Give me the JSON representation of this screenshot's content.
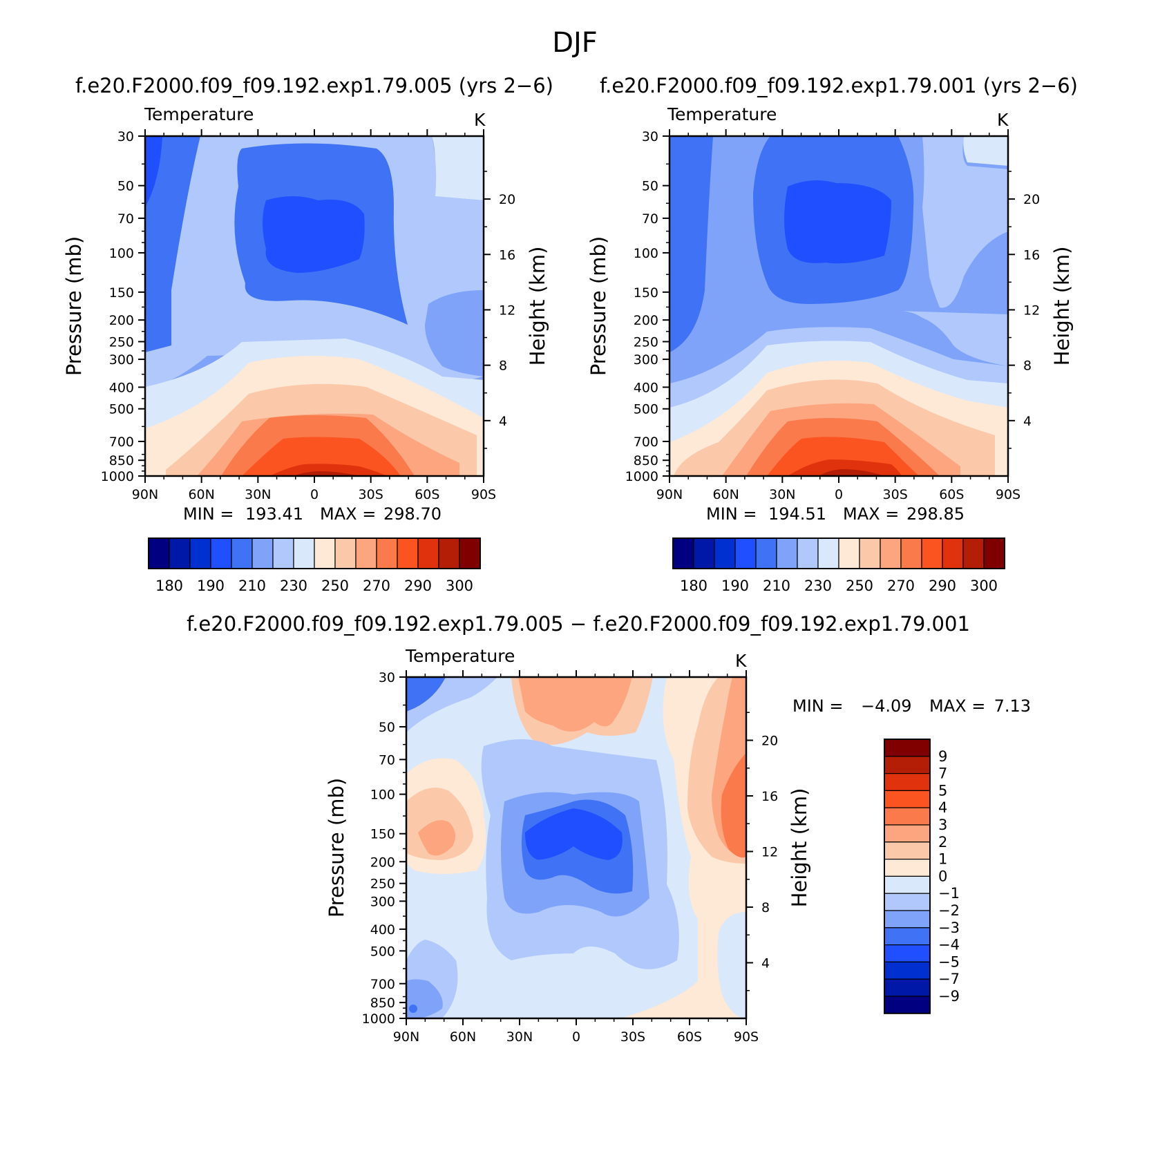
{
  "figure": {
    "title": "DJF"
  },
  "palette": [
    "#000080",
    "#0018a8",
    "#0030d0",
    "#1f4fff",
    "#3f72f4",
    "#7ea3f8",
    "#b0c8fc",
    "#d9e8fb",
    "#fde9d6",
    "#fcc8aa",
    "#fca57f",
    "#fb7a4c",
    "#fb5420",
    "#e0330d",
    "#b41e06",
    "#800000"
  ],
  "chart_data": [
    {
      "type": "heatmap",
      "plot_kind": "zonal-mean pressure-latitude contour",
      "subtitle": "f.e20.F2000.f09_f09.192.exp1.79.005 (yrs 2−6)",
      "variable": "Temperature",
      "units": "K",
      "ylabel": "Pressure (mb)",
      "ylabel_right": "Height (km)",
      "x_ticks": [
        "90N",
        "60N",
        "30N",
        "0",
        "30S",
        "60S",
        "90S"
      ],
      "y_ticks": [
        30,
        50,
        70,
        100,
        150,
        200,
        250,
        300,
        400,
        500,
        700,
        850,
        1000
      ],
      "y2_ticks": [
        20,
        16,
        12,
        8,
        4
      ],
      "min": 193.41,
      "max": 298.7,
      "min_label": "MIN =",
      "max_label": "MAX =",
      "min_text": "193.41",
      "max_text": "298.70",
      "colorbar_labels": [
        "180",
        "190",
        "210",
        "230",
        "250",
        "270",
        "290",
        "300"
      ]
    },
    {
      "type": "heatmap",
      "plot_kind": "zonal-mean pressure-latitude contour",
      "subtitle": "f.e20.F2000.f09_f09.192.exp1.79.001 (yrs 2−6)",
      "variable": "Temperature",
      "units": "K",
      "ylabel": "Pressure (mb)",
      "ylabel_right": "Height (km)",
      "x_ticks": [
        "90N",
        "60N",
        "30N",
        "0",
        "30S",
        "60S",
        "90S"
      ],
      "y_ticks": [
        30,
        50,
        70,
        100,
        150,
        200,
        250,
        300,
        400,
        500,
        700,
        850,
        1000
      ],
      "y2_ticks": [
        20,
        16,
        12,
        8,
        4
      ],
      "min": 194.51,
      "max": 298.85,
      "min_label": "MIN =",
      "max_label": "MAX =",
      "min_text": "194.51",
      "max_text": "298.85",
      "colorbar_labels": [
        "180",
        "190",
        "210",
        "230",
        "250",
        "270",
        "290",
        "300"
      ]
    },
    {
      "type": "heatmap",
      "plot_kind": "zonal-mean pressure-latitude difference contour",
      "subtitle": "f.e20.F2000.f09_f09.192.exp1.79.005 − f.e20.F2000.f09_f09.192.exp1.79.001",
      "variable": "Temperature",
      "units": "K",
      "ylabel": "Pressure (mb)",
      "ylabel_right": "Height (km)",
      "x_ticks": [
        "90N",
        "60N",
        "30N",
        "0",
        "30S",
        "60S",
        "90S"
      ],
      "y_ticks": [
        30,
        50,
        70,
        100,
        150,
        200,
        250,
        300,
        400,
        500,
        700,
        850,
        1000
      ],
      "y2_ticks": [
        20,
        16,
        12,
        8,
        4
      ],
      "min": -4.09,
      "max": 7.13,
      "min_label": "MIN =",
      "max_label": "MAX =",
      "min_text": "−4.09",
      "max_text": "7.13",
      "colorbar_labels": [
        "9",
        "7",
        "5",
        "4",
        "3",
        "2",
        "1",
        "0",
        "−1",
        "−2",
        "−3",
        "−4",
        "−5",
        "−7",
        "−9"
      ]
    }
  ]
}
